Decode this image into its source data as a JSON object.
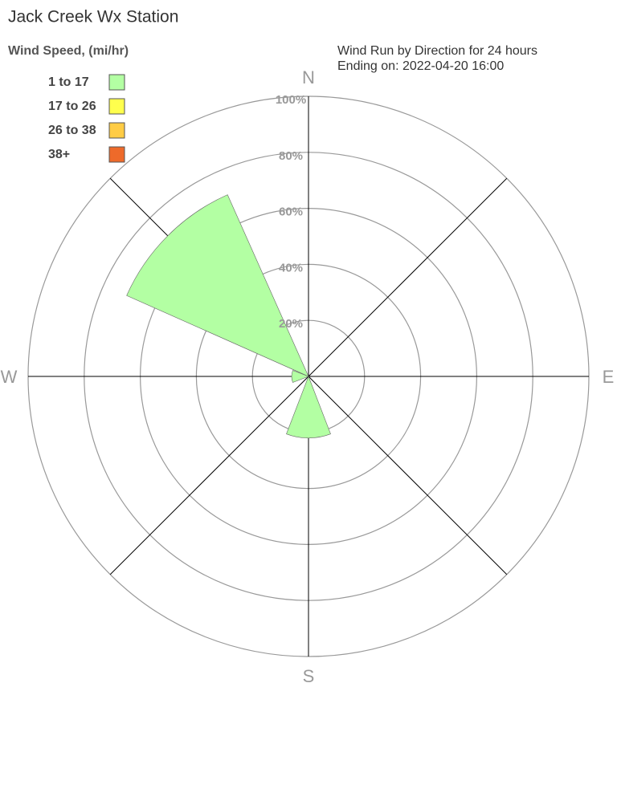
{
  "chart_data": {
    "type": "windrose",
    "title": "Jack Creek Wx Station",
    "legend_title": "Wind Speed, (mi/hr)",
    "subtitle": [
      "Wind Run by Direction for 24 hours",
      "Ending on: 2022-04-20 16:00"
    ],
    "categories": [
      "N",
      null,
      "E",
      null,
      "S",
      null,
      "W",
      null
    ],
    "series": [
      {
        "name": "1 to 17",
        "color": "#b3ffa3",
        "values": [
          0,
          0,
          0,
          0,
          22,
          0,
          6,
          71
        ]
      },
      {
        "name": "17 to 26",
        "color": "#ffff4d",
        "values": [
          0,
          0,
          0,
          0,
          0,
          0,
          0,
          0
        ]
      },
      {
        "name": "26 to 38",
        "color": "#ffcc44",
        "values": [
          0,
          0,
          0,
          0,
          0,
          0,
          0,
          0
        ]
      },
      {
        "name": "38+",
        "color": "#ee6a2a",
        "values": [
          0,
          0,
          0,
          0,
          0,
          0,
          0,
          0
        ]
      }
    ],
    "rlim": [
      0,
      100
    ],
    "rticks": [
      {
        "value": 20,
        "label": "20%"
      },
      {
        "value": 40,
        "label": "40%"
      },
      {
        "value": 60,
        "label": "60%"
      },
      {
        "value": 80,
        "label": "80%"
      },
      {
        "value": 100,
        "label": "100%"
      }
    ],
    "grid": true
  }
}
